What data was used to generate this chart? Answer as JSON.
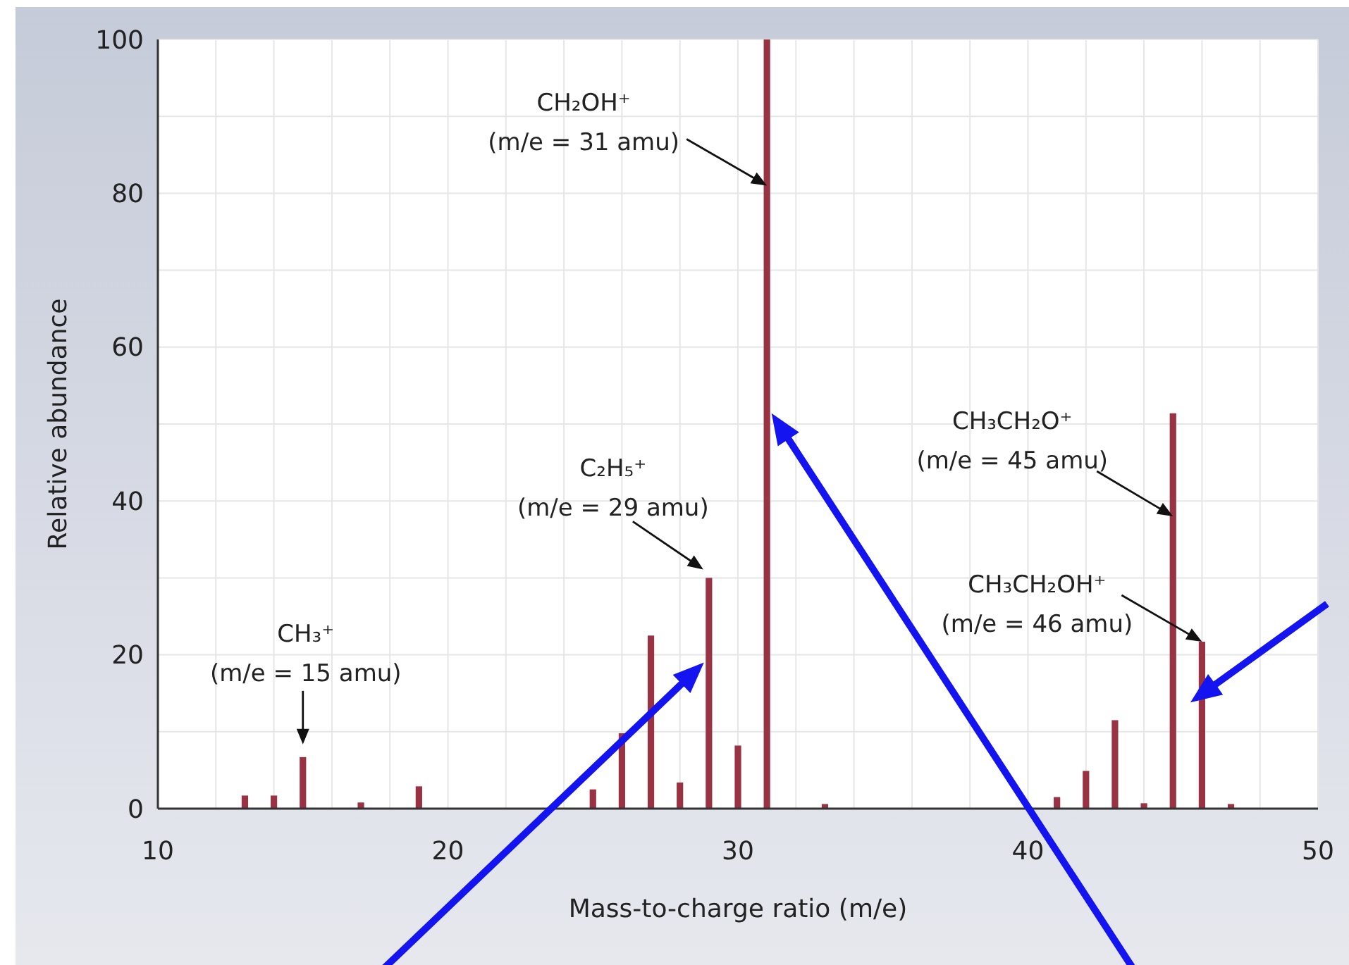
{
  "chart_data": {
    "type": "bar",
    "xlabel": "Mass-to-charge ratio (m/e)",
    "ylabel": "Relative abundance",
    "x": [
      13,
      14,
      15,
      17,
      19,
      25,
      26,
      27,
      28,
      29,
      30,
      31,
      33,
      41,
      42,
      43,
      44,
      45,
      46,
      47
    ],
    "values": [
      1.7,
      1.7,
      6.7,
      0.8,
      2.9,
      2.5,
      9.8,
      22.5,
      3.4,
      30,
      8.2,
      100,
      0.6,
      1.5,
      4.9,
      11.5,
      0.7,
      51.4,
      21.7,
      0.6
    ],
    "color": "#993344",
    "xlim": [
      10,
      50
    ],
    "xticks": [
      10,
      {
        "value": 12,
        "label": null
      },
      {
        "value": 14,
        "label": null
      },
      {
        "value": 16,
        "label": null
      },
      {
        "value": 18,
        "label": null
      },
      20,
      {
        "value": 22,
        "label": null
      },
      {
        "value": 24,
        "label": null
      },
      {
        "value": 26,
        "label": null
      },
      {
        "value": 28,
        "label": null
      },
      30,
      {
        "value": 32,
        "label": null
      },
      {
        "value": 34,
        "label": null
      },
      {
        "value": 36,
        "label": null
      },
      {
        "value": 38,
        "label": null
      },
      40,
      {
        "value": 42,
        "label": null
      },
      {
        "value": 44,
        "label": null
      },
      {
        "value": 46,
        "label": null
      },
      {
        "value": 48,
        "label": null
      },
      50
    ],
    "ylim": [
      0,
      100
    ],
    "yticks": [
      0,
      {
        "value": 10,
        "label": null
      },
      20,
      {
        "value": 30,
        "label": null
      },
      40,
      {
        "value": 50,
        "label": null
      },
      60,
      {
        "value": 70,
        "label": null
      },
      80,
      {
        "value": 90,
        "label": null
      },
      100
    ],
    "grid": true,
    "annotations": [
      {
        "text": "CH₃⁺\n(m/e = 15 amu)",
        "x": 15,
        "y": 6.7
      },
      {
        "text": "C₂H₅⁺\n(m/e = 29 amu)",
        "x": 29,
        "y": 30
      },
      {
        "text": "CH₂OH⁺\n(m/e = 31 amu)",
        "x": 31,
        "y": 81
      },
      {
        "text": "CH₃CH₂O⁺\n(m/e = 45 amu)",
        "x": 45,
        "y": 38
      },
      {
        "text": "CH₃CH₂OH⁺\n(m/e = 46 amu)",
        "x": 46,
        "y": 21.7
      }
    ]
  }
}
